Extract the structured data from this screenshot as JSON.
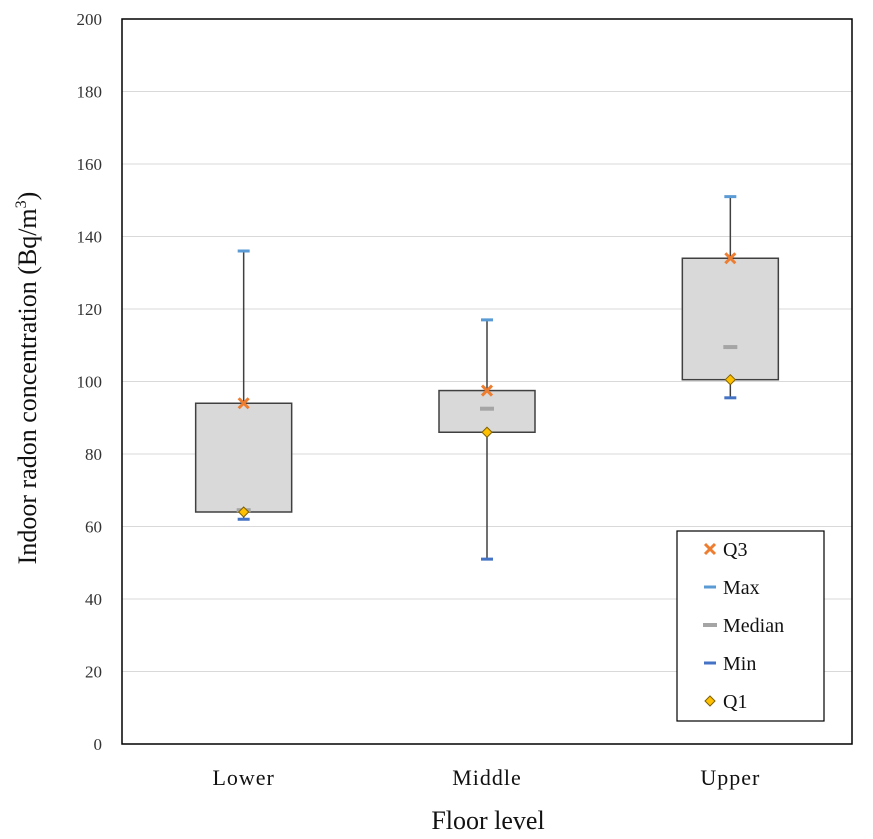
{
  "chart_data": {
    "type": "box",
    "xlabel": "Floor level",
    "ylabel_main": "Indoor radon concentration (Bq/m",
    "ylabel_sup": "3",
    "ylabel_close": ")",
    "ylim": [
      0,
      200
    ],
    "yticks": [
      0,
      20,
      40,
      60,
      80,
      100,
      120,
      140,
      160,
      180,
      200
    ],
    "grid": true,
    "legend_position": "bottom-right",
    "categories": [
      "Lower",
      "Middle",
      "Upper"
    ],
    "series": [
      {
        "name": "Q3",
        "values": [
          94,
          97.5,
          134
        ]
      },
      {
        "name": "Max",
        "values": [
          136,
          117,
          151
        ]
      },
      {
        "name": "Median",
        "values": [
          64.5,
          92.5,
          109.5
        ]
      },
      {
        "name": "Min",
        "values": [
          62,
          51,
          95.5
        ]
      },
      {
        "name": "Q1",
        "values": [
          64,
          86,
          100.5
        ]
      }
    ],
    "colors": {
      "box_fill": "#d9d9d9",
      "box_stroke": "#404040",
      "whisker": "#404040",
      "Q3": "#ed7d31",
      "Max": "#5b9bd5",
      "Median": "#a5a5a5",
      "Min": "#4472c4",
      "Q1": "#ffc000",
      "Q1_stroke": "#7f6000",
      "grid": "#d9d9d9"
    }
  }
}
